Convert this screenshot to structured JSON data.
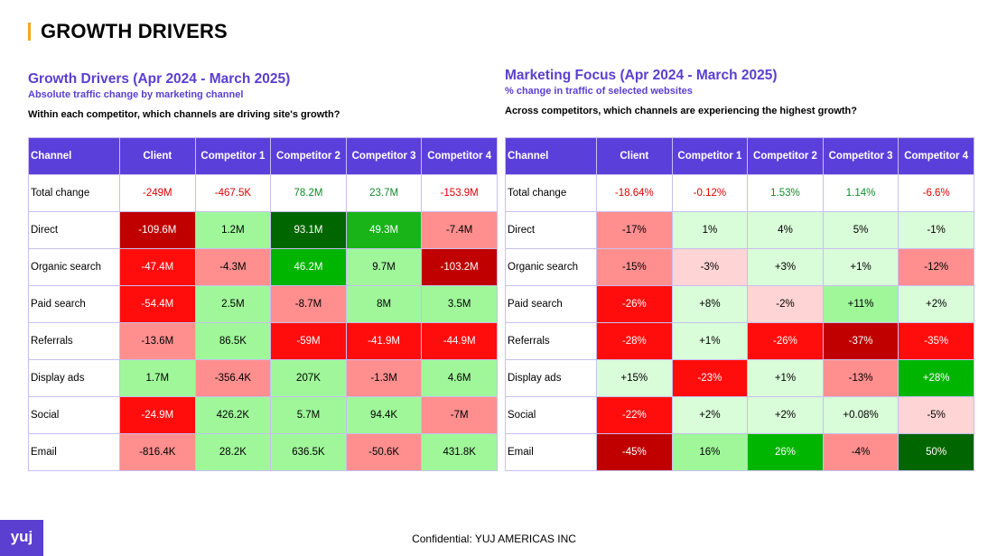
{
  "page": {
    "title": "GROWTH DRIVERS"
  },
  "left": {
    "title": "Growth Drivers (Apr 2024 - March 2025)",
    "subtitle": "Absolute traffic change by marketing channel",
    "question": "Within each competitor, which channels are driving site's growth?",
    "headers": [
      "Channel",
      "Client",
      "Competitor 1",
      "Competitor 2",
      "Competitor 3",
      "Competitor 4"
    ],
    "total": {
      "label": "Total change",
      "values": [
        "-249M",
        "-467.5K",
        "78.2M",
        "23.7M",
        "-153.9M"
      ]
    },
    "rows": [
      {
        "label": "Direct",
        "values": [
          "-109.6M",
          "1.2M",
          "93.1M",
          "49.3M",
          "-7.4M"
        ],
        "colors": [
          "#c00000",
          "#9ff79a",
          "#006600",
          "#18b418",
          "#ff8f8f"
        ]
      },
      {
        "label": "Organic search",
        "values": [
          "-47.4M",
          "-4.3M",
          "46.2M",
          "9.7M",
          "-103.2M"
        ],
        "colors": [
          "#ff0d0d",
          "#ff8f8f",
          "#00b500",
          "#9ff79a",
          "#c00000"
        ]
      },
      {
        "label": "Paid search",
        "values": [
          "-54.4M",
          "2.5M",
          "-8.7M",
          "8M",
          "3.5M"
        ],
        "colors": [
          "#ff0d0d",
          "#9ff79a",
          "#ff8f8f",
          "#9ff79a",
          "#9ff79a"
        ]
      },
      {
        "label": "Referrals",
        "values": [
          "-13.6M",
          "86.5K",
          "-59M",
          "-41.9M",
          "-44.9M"
        ],
        "colors": [
          "#ff8f8f",
          "#9ff79a",
          "#ff0d0d",
          "#ff0d0d",
          "#ff0d0d"
        ]
      },
      {
        "label": "Display ads",
        "values": [
          "1.7M",
          "-356.4K",
          "207K",
          "-1.3M",
          "4.6M"
        ],
        "colors": [
          "#9ff79a",
          "#ff8f8f",
          "#9ff79a",
          "#ff8f8f",
          "#9ff79a"
        ]
      },
      {
        "label": "Social",
        "values": [
          "-24.9M",
          "426.2K",
          "5.7M",
          "94.4K",
          "-7M"
        ],
        "colors": [
          "#ff0d0d",
          "#9ff79a",
          "#9ff79a",
          "#9ff79a",
          "#ff8f8f"
        ]
      },
      {
        "label": "Email",
        "values": [
          "-816.4K",
          "28.2K",
          "636.5K",
          "-50.6K",
          "431.8K"
        ],
        "colors": [
          "#ff8f8f",
          "#9ff79a",
          "#9ff79a",
          "#ff8f8f",
          "#9ff79a"
        ]
      }
    ]
  },
  "right": {
    "title": "Marketing Focus (Apr 2024 - March 2025)",
    "subtitle": "% change in traffic of selected websites",
    "question": "Across competitors, which channels are experiencing the highest growth?",
    "headers": [
      "Channel",
      "Client",
      "Competitor 1",
      "Competitor 2",
      "Competitor 3",
      "Competitor 4"
    ],
    "total": {
      "label": "Total change",
      "values": [
        "-18.64%",
        "-0.12%",
        "1.53%",
        "1.14%",
        "-6.6%"
      ]
    },
    "rows": [
      {
        "label": "Direct",
        "values": [
          "-17%",
          "1%",
          "4%",
          "5%",
          "-1%"
        ],
        "colors": [
          "#ff8f8f",
          "#d9fcd9",
          "#d9fcd9",
          "#d9fcd9",
          "#d9fcd9"
        ]
      },
      {
        "label": "Organic search",
        "values": [
          "-15%",
          "-3%",
          "+3%",
          "+1%",
          "-12%"
        ],
        "colors": [
          "#ff8f8f",
          "#ffd4d4",
          "#d9fcd9",
          "#d9fcd9",
          "#ff8f8f"
        ]
      },
      {
        "label": "Paid search",
        "values": [
          "-26%",
          "+8%",
          "-2%",
          "+11%",
          "+2%"
        ],
        "colors": [
          "#ff0d0d",
          "#d9fcd9",
          "#ffd4d4",
          "#9ff79a",
          "#d9fcd9"
        ]
      },
      {
        "label": "Referrals",
        "values": [
          "-28%",
          "+1%",
          "-26%",
          "-37%",
          "-35%"
        ],
        "colors": [
          "#ff0d0d",
          "#d9fcd9",
          "#ff0d0d",
          "#c00000",
          "#ff0d0d"
        ]
      },
      {
        "label": "Display ads",
        "values": [
          "+15%",
          "-23%",
          "+1%",
          "-13%",
          "+28%"
        ],
        "colors": [
          "#d9fcd9",
          "#ff0d0d",
          "#d9fcd9",
          "#ff8f8f",
          "#00b500"
        ]
      },
      {
        "label": "Social",
        "values": [
          "-22%",
          "+2%",
          "+2%",
          "+0.08%",
          "-5%"
        ],
        "colors": [
          "#ff0d0d",
          "#d9fcd9",
          "#d9fcd9",
          "#d9fcd9",
          "#ffd4d4"
        ]
      },
      {
        "label": "Email",
        "values": [
          "-45%",
          "16%",
          "26%",
          "-4%",
          "50%"
        ],
        "colors": [
          "#c00000",
          "#9ff79a",
          "#00b500",
          "#ff8f8f",
          "#006600"
        ]
      }
    ]
  },
  "footer": {
    "text": "Confidential: YUJ AMERICAS INC",
    "logo": "yuj"
  }
}
